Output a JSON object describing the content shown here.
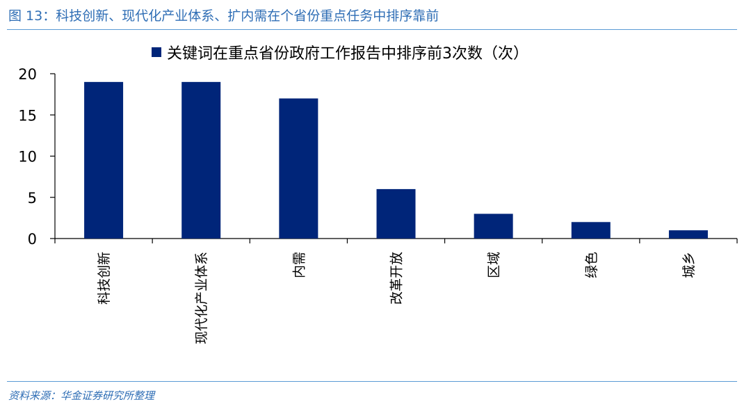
{
  "figure": {
    "title": "图 13：科技创新、现代化产业体系、扩内需在个省份重点任务中排序靠前",
    "source": "资料来源：华金证券研究所整理"
  },
  "colors": {
    "bar": "#002579",
    "accent": "#2f6eb5",
    "rule": "#5b9bd5"
  },
  "chart_data": {
    "type": "bar",
    "categories": [
      "科技创新",
      "现代化产业体系",
      "内需",
      "改革开放",
      "区域",
      "绿色",
      "城乡"
    ],
    "series": [
      {
        "name": "关键词在重点省份政府工作报告中排序前3次数（次）",
        "values": [
          19,
          19,
          17,
          6,
          3,
          2,
          1
        ]
      }
    ],
    "ylim": [
      0,
      20
    ],
    "yticks": [
      0,
      5,
      10,
      15,
      20
    ],
    "legend": "top-center",
    "grid": false,
    "xlabel": "",
    "ylabel": ""
  }
}
